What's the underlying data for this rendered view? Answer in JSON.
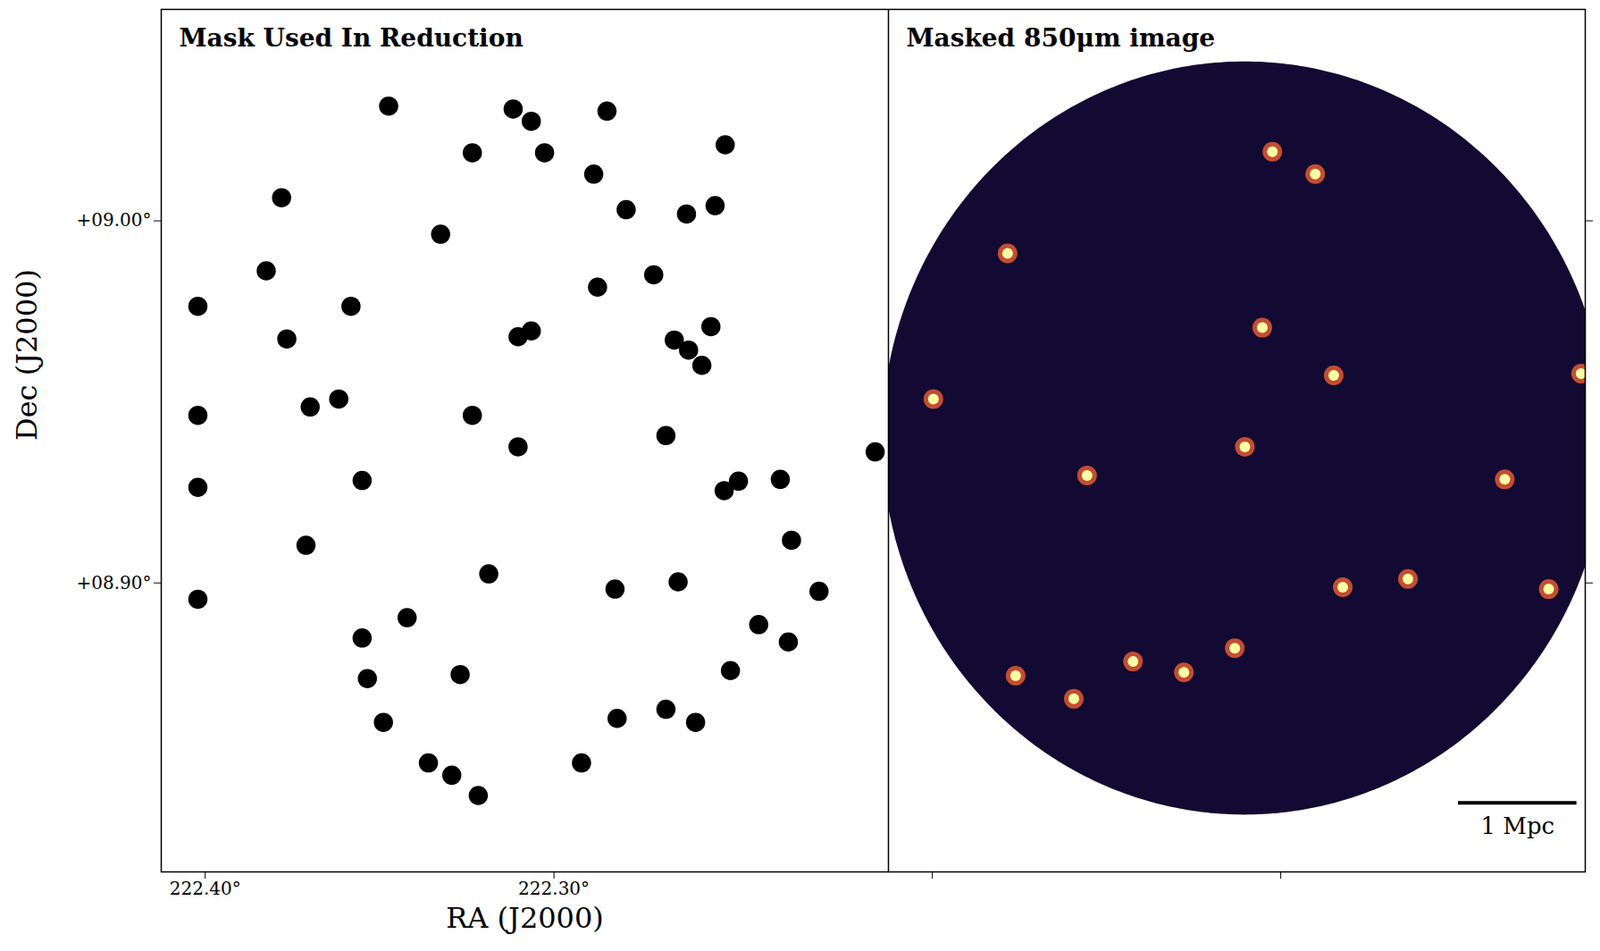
{
  "chart_data": [
    {
      "type": "scatter",
      "title": "Mask Used In Reduction",
      "x_label": "RA (J2000)",
      "y_label": "Dec (J2000)",
      "xlim": [
        222.4126,
        222.2041
      ],
      "ylim": [
        8.8202,
        9.0584
      ],
      "xticks": [
        {
          "value": 222.4,
          "label": "222.40°"
        },
        {
          "value": 222.3,
          "label": "222.30°"
        }
      ],
      "yticks": [
        {
          "value": 8.9,
          "label": "+08.90°"
        },
        {
          "value": 9.0,
          "label": "+09.00°"
        }
      ],
      "color": "#000000",
      "marker": "circle",
      "x": [
        222.3474,
        222.3117,
        222.3065,
        222.2848,
        222.2509,
        222.3234,
        222.3027,
        222.3781,
        222.2886,
        222.3325,
        222.2793,
        222.262,
        222.2538,
        222.3825,
        222.2714,
        222.4021,
        222.3582,
        222.2875,
        222.3766,
        222.3065,
        222.3103,
        222.2655,
        222.2614,
        222.2576,
        222.255,
        222.3699,
        222.3617,
        222.4021,
        222.3234,
        222.3103,
        222.2679,
        222.2079,
        222.4021,
        222.355,
        222.2512,
        222.2471,
        222.2351,
        222.3711,
        222.2319,
        222.3187,
        222.4021,
        222.2825,
        222.2644,
        222.224,
        222.3421,
        222.355,
        222.2413,
        222.2328,
        222.3535,
        222.3269,
        222.2494,
        222.3489,
        222.2819,
        222.2679,
        222.2594,
        222.336,
        222.3293,
        222.2921,
        222.3217
      ],
      "y": [
        9.0317,
        9.0309,
        9.0275,
        9.0303,
        9.021,
        9.0188,
        9.0188,
        9.0064,
        9.0129,
        8.9963,
        9.0031,
        9.0019,
        9.0042,
        8.9862,
        8.9851,
        8.9764,
        8.9764,
        8.9817,
        8.9674,
        8.9696,
        8.968,
        8.9671,
        8.9643,
        8.9601,
        8.9708,
        8.9486,
        8.9508,
        8.9463,
        8.9463,
        8.9376,
        8.9407,
        8.9362,
        8.9264,
        8.9283,
        8.9255,
        8.9281,
        8.9286,
        8.9104,
        8.9118,
        8.9025,
        8.8955,
        8.8983,
        8.9003,
        8.8977,
        8.8904,
        8.8848,
        8.8885,
        8.8837,
        8.8736,
        8.8747,
        8.8758,
        8.8615,
        8.8626,
        8.8651,
        8.8615,
        8.8503,
        8.8469,
        8.8503,
        8.8413
      ]
    },
    {
      "type": "image",
      "title": "Masked 850μm image",
      "xlim": [
        222.4126,
        222.2126
      ],
      "ylim": [
        8.8202,
        9.0584
      ],
      "xticks": [
        222.4,
        222.3
      ],
      "yticks": [
        8.9,
        9.0
      ],
      "tick_labels": false,
      "color": "#120a32",
      "footprint": {
        "center_x": 222.3103,
        "center_y": 8.9399,
        "radius": 0.104
      },
      "sources": {
        "x": [
          222.3024,
          222.2901,
          222.3053,
          222.2848,
          222.3103,
          222.3556,
          222.2357,
          222.2231,
          222.2822,
          222.3278,
          222.3424,
          222.3594,
          222.3784,
          222.3997,
          222.2138,
          222.2635,
          222.3761,
          222.3132
        ],
        "y": [
          9.0191,
          9.0129,
          8.9705,
          8.9573,
          8.9376,
          8.9297,
          8.9286,
          8.8983,
          8.8988,
          8.8753,
          8.8783,
          8.868,
          8.991,
          8.9508,
          8.9578,
          8.9011,
          8.8744,
          8.882
        ]
      },
      "scale_bar": {
        "label": "1 Mpc",
        "length": 0.034
      }
    }
  ]
}
